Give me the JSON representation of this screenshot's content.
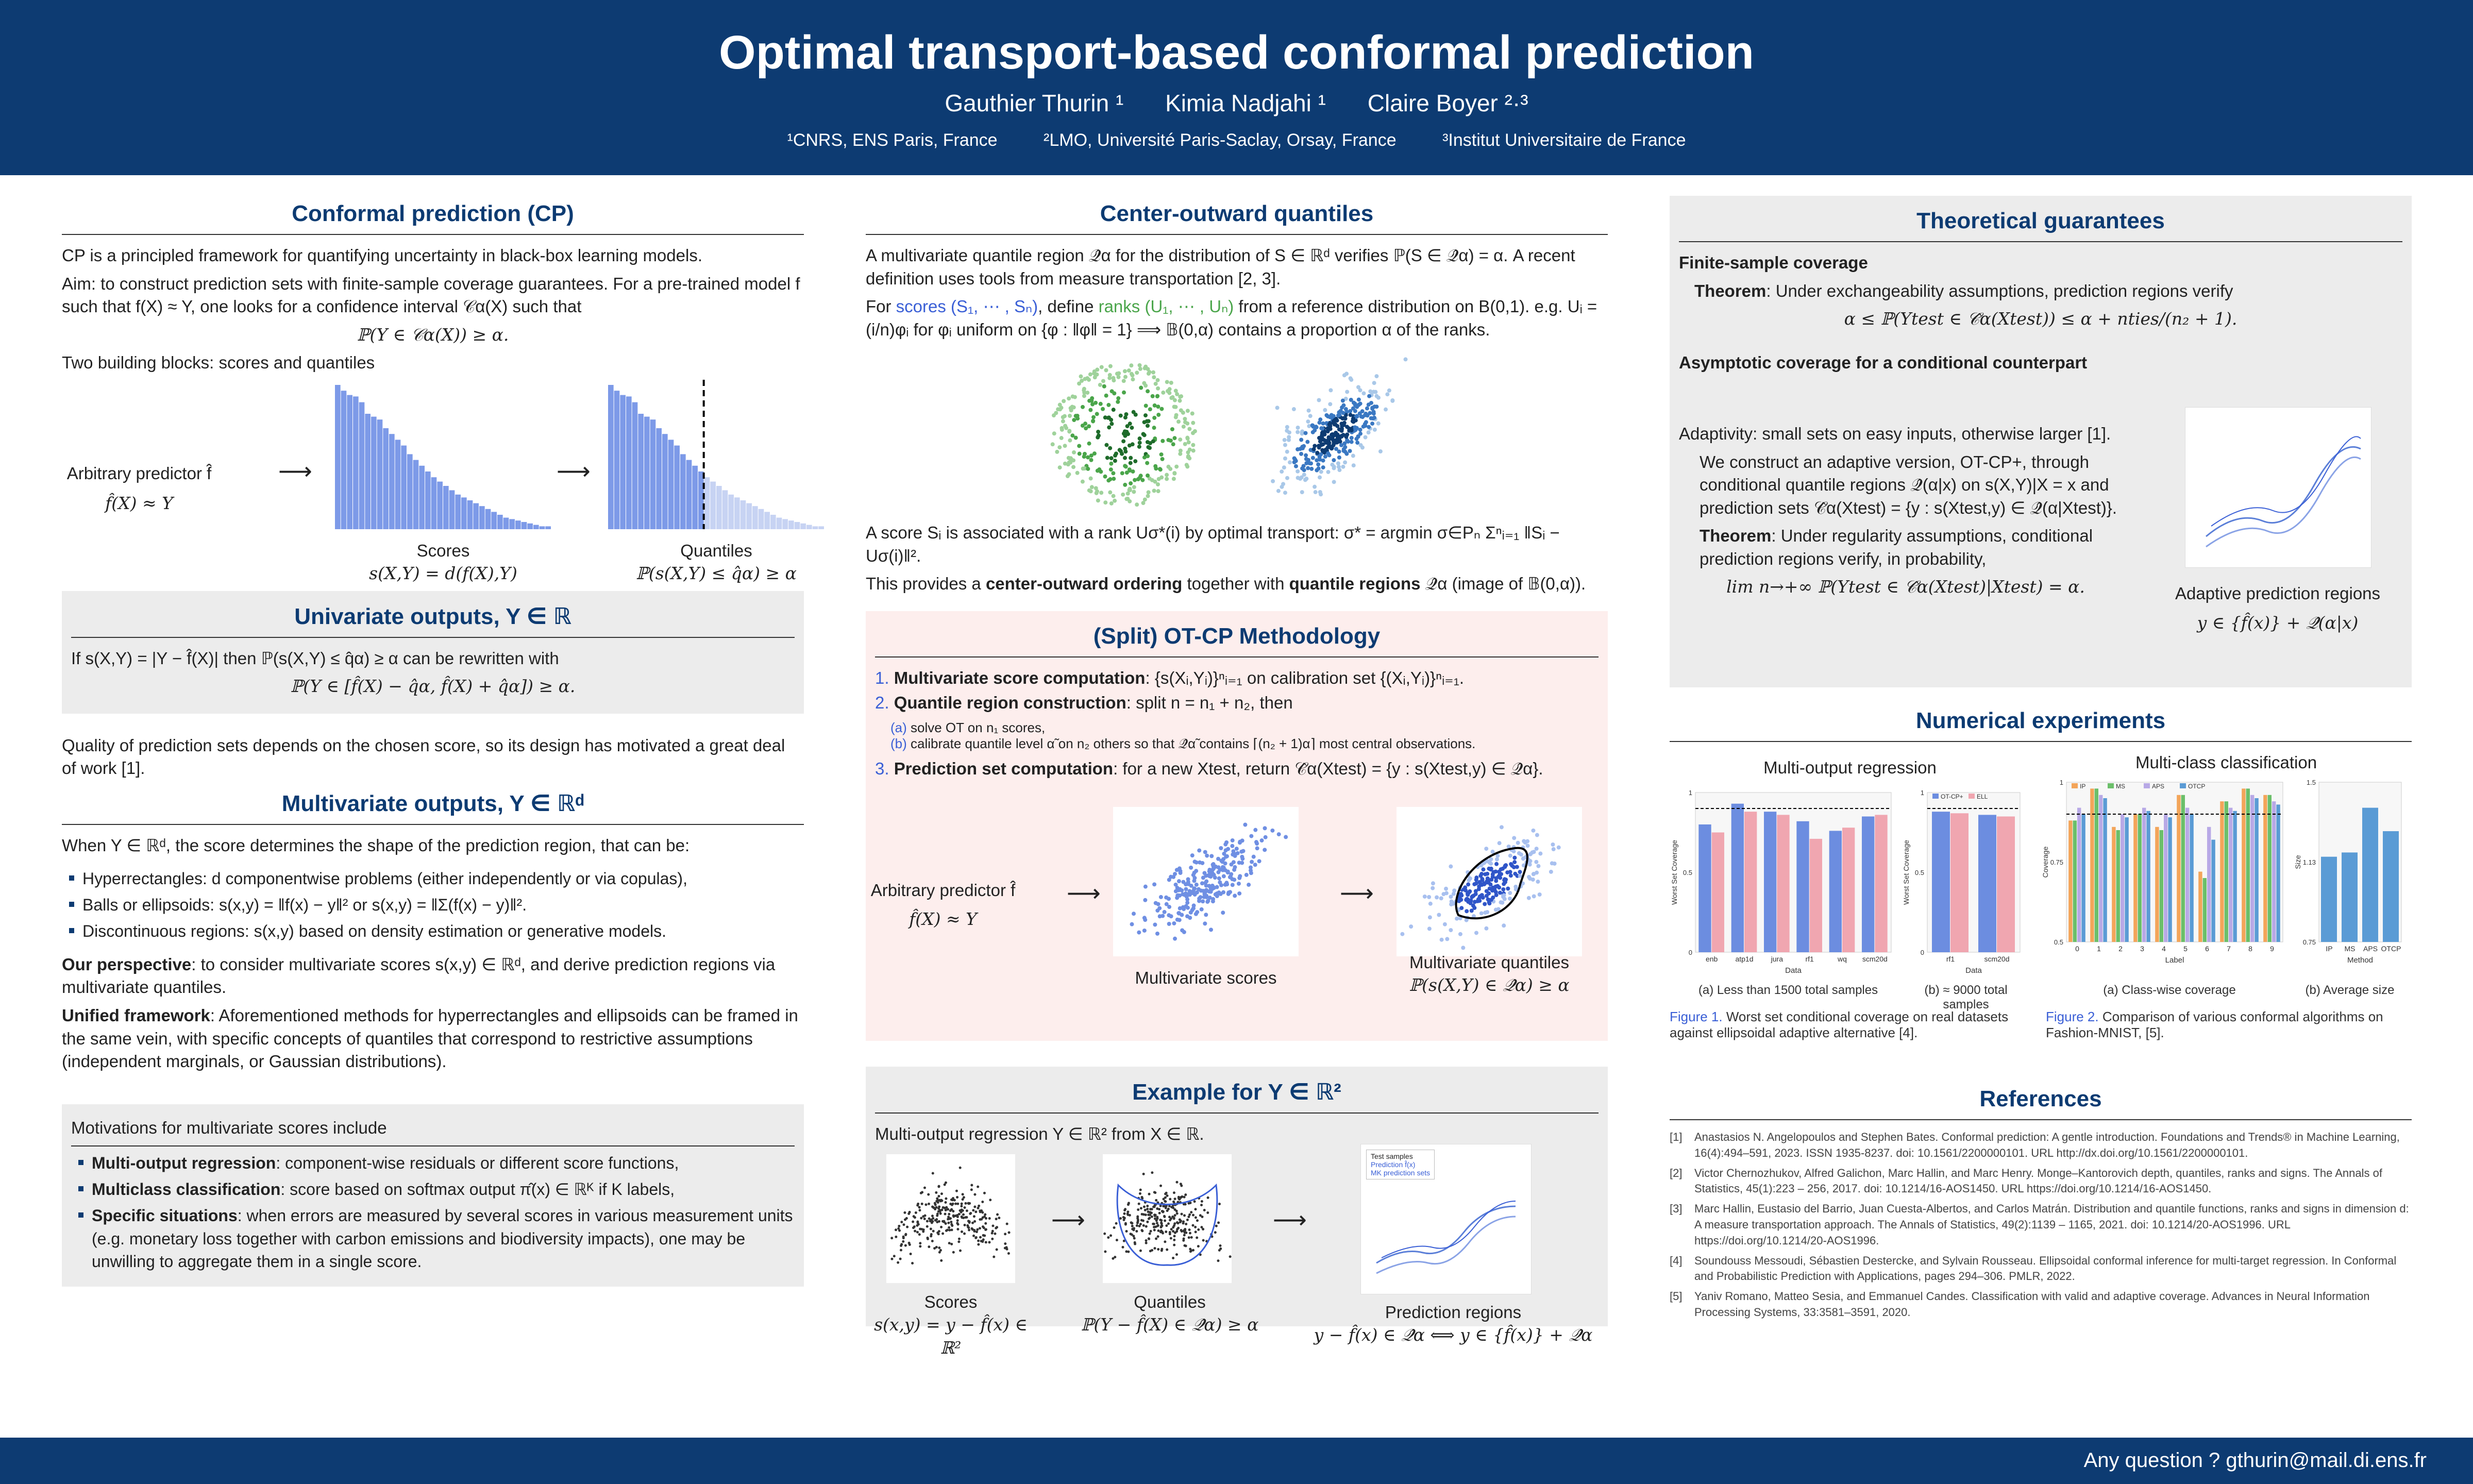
{
  "header": {
    "title": "Optimal transport-based conformal prediction",
    "authors": [
      "Gauthier Thurin ¹",
      "Kimia Nadjahi ¹",
      "Claire Boyer ²·³"
    ],
    "affiliations": [
      "¹CNRS, ENS Paris, France",
      "²LMO, Université Paris-Saclay, Orsay, France",
      "³Institut Universitaire de France"
    ]
  },
  "footer": {
    "contact": "Any question ? gthurin@mail.di.ens.fr"
  },
  "col1": {
    "cp_title": "Conformal prediction (CP)",
    "cp_intro": "CP is a principled framework for quantifying uncertainty in black-box learning models.",
    "cp_aim_label": "Aim",
    "cp_aim": ": to construct prediction sets with finite-sample coverage guarantees. For a pre-trained model f such that f(X) ≈ Y, one looks for a confidence interval 𝒞α(X) such that",
    "cp_formula": "ℙ(Y ∈ 𝒞α(X)) ≥ α.",
    "blocks_label": "Two building blocks",
    "blocks_text": ": scores and quantiles",
    "predictor_label": "Arbitrary predictor f̂",
    "predictor_eq": "f̂(X) ≈ Y",
    "scores_label": "Scores",
    "scores_eq": "s(X,Y) = d(f(X),Y)",
    "quantiles_label": "Quantiles",
    "quantiles_eq": "ℙ(s(X,Y) ≤ q̂α) ≥ α",
    "arrow": "⟶",
    "uni_title": "Univariate outputs, Y ∈ ℝ",
    "uni_text": "If s(X,Y) = |Y − f̂(X)| then ℙ(s(X,Y) ≤ q̂α) ≥ α can be rewritten with",
    "uni_formula": "ℙ(Y ∈ [f̂(X) − q̂α, f̂(X) + q̂α]) ≥ α.",
    "quality_text": "Quality of prediction sets depends on the chosen score, so its design has motivated a great deal of work [1].",
    "multi_title": "Multivariate outputs, Y ∈ ℝᵈ",
    "multi_intro": "When Y ∈ ℝᵈ, the score determines the shape of the prediction region, that can be:",
    "multi_items": [
      "Hyperrectangles: d componentwise problems (either independently or via copulas),",
      "Balls or ellipsoids: s(x,y) = ‖f(x) − y‖² or s(x,y) = ‖Σ(f(x) − y)‖².",
      "Discontinuous regions: s(x,y) based on density estimation or generative models."
    ],
    "perspective_label": "Our perspective",
    "perspective_text": ": to consider multivariate scores s(x,y) ∈ ℝᵈ, and derive prediction regions via multivariate quantiles.",
    "unified_label": "Unified framework",
    "unified_text": ": Aforementioned methods for hyperrectangles and ellipsoids can be framed in the same vein, with specific concepts of quantiles that correspond to restrictive assumptions (independent marginals, or Gaussian distributions).",
    "motivations_title": "Motivations for multivariate scores include",
    "motivations": [
      {
        "label": "Multi-output regression",
        "text": ": component-wise residuals or different score functions,"
      },
      {
        "label": "Multiclass classification",
        "text": ": score based on softmax output π̂(x) ∈ ℝᴷ if K labels,"
      },
      {
        "label": "Specific situations",
        "text": ": when errors are measured by several scores in various measurement units (e.g. monetary loss together with carbon emissions and biodiversity impacts), one may be unwilling to aggregate them in a single score."
      }
    ]
  },
  "col2": {
    "cq_title": "Center-outward quantiles",
    "cq_text1": "A multivariate quantile region 𝒬̂α for the distribution of S ∈ ℝᵈ verifies ℙ(S ∈ 𝒬̂α) = α. A recent definition uses tools from measure transportation [2, 3].",
    "cq_text2_a": "For",
    "cq_text2_scores": "scores (S₁, ⋯ , Sₙ)",
    "cq_text2_b": ", define",
    "cq_text2_ranks": "ranks (U₁, ⋯ , Uₙ)",
    "cq_text2_c": "from a reference distribution on B(0,1). e.g.",
    "cq_text2_d": "Uᵢ = (i/n)φᵢ for φᵢ uniform on {φ : ‖φ‖ = 1} ⟹ 𝔹(0,α) contains a proportion α of the ranks.",
    "cq_text3": "A score Sᵢ is associated with a rank Uσ*(i) by optimal transport: σ* = argmin σ∈Pₙ Σⁿᵢ₌₁ ‖Sᵢ − Uσ(i)‖².",
    "cq_text4_a": "This provides a",
    "cq_text4_b": "center-outward ordering",
    "cq_text4_c": "together with",
    "cq_text4_d": "quantile regions",
    "cq_text4_e": "𝒬̂α (image of 𝔹(0,α)).",
    "otcp_title": "(Split) OT-CP Methodology",
    "otcp_steps": [
      {
        "num": "1.",
        "label": "Multivariate score computation",
        "text": ": {s(Xᵢ,Yᵢ)}ⁿᵢ₌₁ on calibration set {(Xᵢ,Yᵢ)}ⁿᵢ₌₁."
      },
      {
        "num": "2.",
        "label": "Quantile region construction",
        "text": ": split n = n₁ + n₂, then"
      }
    ],
    "otcp_sub": [
      {
        "num": "(a)",
        "text": "solve OT on n₁ scores,"
      },
      {
        "num": "(b)",
        "text": "calibrate quantile level α̃ on n₂ others so that 𝒬̂α̃ contains ⌈(n₂ + 1)α⌉ most central observations."
      }
    ],
    "otcp_step3_num": "3.",
    "otcp_step3_label": "Prediction set computation",
    "otcp_step3_text": ": for a new Xtest, return 𝒞̂α(Xtest) = {y : s(Xtest,y) ∈ 𝒬̂α}.",
    "otcp_predictor": "Arbitrary predictor f̂",
    "otcp_predictor_eq": "f̂(X) ≈ Y",
    "otcp_scores": "Multivariate scores",
    "otcp_quantiles": "Multivariate quantiles",
    "otcp_quantiles_eq": "ℙ(s(X,Y) ∈ 𝒬̂α) ≥ α",
    "example_title": "Example for Y ∈ ℝ²",
    "example_text": "Multi-output regression Y ∈ ℝ² from X ∈ ℝ.",
    "ex_scores": "Scores",
    "ex_scores_eq": "s(x,y) = y − f̂(x) ∈ ℝ²",
    "ex_quantiles": "Quantiles",
    "ex_quantiles_eq": "ℙ(Y − f̂(X) ∈ 𝒬̂α) ≥ α",
    "ex_regions": "Prediction regions",
    "ex_regions_eq": "y − f̂(x) ∈ 𝒬̂α ⟺ y ∈ {f̂(x)} + 𝒬̂α",
    "ex_legend": [
      "Test samples",
      "Prediction f̂(x)",
      "MK prediction sets"
    ]
  },
  "col3": {
    "theory_title": "Theoretical guarantees",
    "fs_title": "Finite-sample coverage",
    "fs_theorem_label": "Theorem",
    "fs_theorem_text": ": Under exchangeability assumptions, prediction regions verify",
    "fs_formula": "α ≤ ℙ(Ytest ∈ 𝒞̂α(Xtest)) ≤ α + nties/(n₂ + 1).",
    "asym_title": "Asymptotic coverage for a conditional counterpart",
    "asym_text1": "Adaptivity: small sets on easy inputs, otherwise larger [1].",
    "asym_text2": "We construct an adaptive version, OT-CP+, through conditional quantile regions 𝒬̂(α|x) on s(X,Y)|X = x and prediction sets 𝒞̂α(Xtest) = {y : s(Xtest,y) ∈ 𝒬̂(α|Xtest)}.",
    "asym_theorem_label": "Theorem",
    "asym_theorem_text": ": Under regularity assumptions, conditional prediction regions verify, in probability,",
    "asym_formula": "lim n→+∞ ℙ(Ytest ∈ 𝒞̂α(Xtest)|Xtest) = α.",
    "adaptive_label": "Adaptive prediction regions",
    "adaptive_eq": "y ∈ {f̂(x)} + 𝒬̂(α|x)",
    "num_title": "Numerical experiments",
    "fig1_title": "Multi-output regression",
    "fig2_title": "Multi-class classification",
    "fig1_sub_a": "(a) Less than 1500 total samples",
    "fig1_sub_b": "(b) ≈ 9000 total samples",
    "fig1_caption_label": "Figure 1.",
    "fig1_caption": "Worst set conditional coverage on real datasets against ellipsoidal adaptive alternative [4].",
    "fig2_sub_a": "(a) Class-wise coverage",
    "fig2_sub_b": "(b) Average size",
    "fig2_caption_label": "Figure 2.",
    "fig2_caption": "Comparison of various conformal algorithms on Fashion-MNIST, [5].",
    "refs_title": "References",
    "refs": [
      {
        "num": "[1]",
        "text": "Anastasios N. Angelopoulos and Stephen Bates. Conformal prediction: A gentle introduction. Foundations and Trends® in Machine Learning, 16(4):494–591, 2023. ISSN 1935-8237. doi: 10.1561/2200000101. URL http://dx.doi.org/10.1561/2200000101."
      },
      {
        "num": "[2]",
        "text": "Victor Chernozhukov, Alfred Galichon, Marc Hallin, and Marc Henry. Monge–Kantorovich depth, quantiles, ranks and signs. The Annals of Statistics, 45(1):223 – 256, 2017. doi: 10.1214/16-AOS1450. URL https://doi.org/10.1214/16-AOS1450."
      },
      {
        "num": "[3]",
        "text": "Marc Hallin, Eustasio del Barrio, Juan Cuesta-Albertos, and Carlos Matrán. Distribution and quantile functions, ranks and signs in dimension d: A measure transportation approach. The Annals of Statistics, 49(2):1139 – 1165, 2021. doi: 10.1214/20-AOS1996. URL https://doi.org/10.1214/20-AOS1996."
      },
      {
        "num": "[4]",
        "text": "Soundouss Messoudi, Sébastien Destercke, and Sylvain Rousseau. Ellipsoidal conformal inference for multi-target regression. In Conformal and Probabilistic Prediction with Applications, pages 294–306. PMLR, 2022."
      },
      {
        "num": "[5]",
        "text": "Yaniv Romano, Matteo Sesia, and Emmanuel Candes. Classification with valid and adaptive coverage. Advances in Neural Information Processing Systems, 33:3581–3591, 2020."
      }
    ]
  },
  "chart_data": [
    {
      "type": "bar",
      "title": "Scores",
      "values": [
        100,
        96,
        93,
        92,
        88,
        80,
        78,
        76,
        70,
        66,
        62,
        58,
        52,
        48,
        44,
        40,
        36,
        33,
        30,
        27,
        24,
        22,
        20,
        18,
        16,
        14,
        12,
        10,
        8,
        7,
        6,
        5,
        4,
        3,
        2,
        2
      ]
    },
    {
      "type": "bar",
      "title": "Quantiles",
      "values": [
        100,
        96,
        93,
        92,
        88,
        80,
        78,
        76,
        70,
        66,
        62,
        58,
        52,
        48,
        44,
        40,
        36,
        33,
        30,
        27,
        24,
        22,
        20,
        18,
        16,
        14,
        12,
        10,
        8,
        7,
        6,
        5,
        4,
        3,
        2,
        2
      ],
      "threshold_index": 16
    },
    {
      "type": "bar",
      "title": "Multi-output regression (a)",
      "categories": [
        "enb",
        "atp1d",
        "jura",
        "rf1",
        "wq",
        "scm20d"
      ],
      "series": [
        {
          "name": "OT-CP+",
          "values": [
            0.8,
            0.93,
            0.88,
            0.82,
            0.76,
            0.85
          ]
        },
        {
          "name": "ELL",
          "values": [
            0.75,
            0.88,
            0.86,
            0.71,
            0.78,
            0.86
          ]
        }
      ],
      "ylabel": "Worst Set Coverage",
      "xlabel": "Data",
      "ylim": [
        0,
        1.0
      ]
    },
    {
      "type": "bar",
      "title": "Multi-output regression (b)",
      "categories": [
        "rf1",
        "scm20d"
      ],
      "series": [
        {
          "name": "OT-CP+",
          "values": [
            0.88,
            0.86
          ]
        },
        {
          "name": "ELL",
          "values": [
            0.87,
            0.85
          ]
        }
      ],
      "ylabel": "Worst Set Coverage",
      "xlabel": "Data",
      "ylim": [
        0,
        1.0
      ]
    },
    {
      "type": "bar",
      "title": "Multi-class classification (a)",
      "categories": [
        "0",
        "1",
        "2",
        "3",
        "4",
        "5",
        "6",
        "7",
        "8",
        "9"
      ],
      "series": [
        {
          "name": "IP",
          "values": [
            0.88,
            0.98,
            0.86,
            0.9,
            0.86,
            0.96,
            0.72,
            0.94,
            0.98,
            0.96
          ]
        },
        {
          "name": "MS",
          "values": [
            0.88,
            0.98,
            0.85,
            0.9,
            0.85,
            0.96,
            0.7,
            0.94,
            0.98,
            0.96
          ]
        },
        {
          "name": "APS",
          "values": [
            0.92,
            0.96,
            0.9,
            0.92,
            0.9,
            0.92,
            0.86,
            0.92,
            0.96,
            0.94
          ]
        },
        {
          "name": "OTCP",
          "values": [
            0.9,
            0.95,
            0.89,
            0.91,
            0.89,
            0.9,
            0.82,
            0.91,
            0.95,
            0.93
          ]
        }
      ],
      "ylabel": "Coverage",
      "xlabel": "Label",
      "ylim": [
        0.5,
        1.0
      ]
    },
    {
      "type": "bar",
      "title": "Multi-class classification (b)",
      "categories": [
        "IP",
        "MS",
        "APS",
        "OTCP"
      ],
      "values": [
        1.15,
        1.17,
        1.38,
        1.27
      ],
      "ylabel": "Size",
      "xlabel": "Method",
      "ylim": [
        0.75,
        1.5
      ]
    }
  ]
}
